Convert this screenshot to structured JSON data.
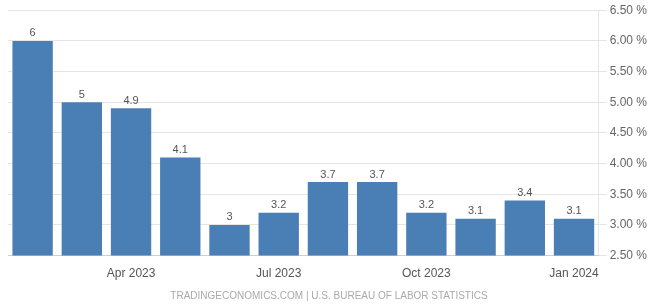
{
  "chart_data": {
    "type": "bar",
    "categories": [
      null,
      null,
      "Apr 2023",
      null,
      null,
      "Jul 2023",
      null,
      null,
      "Oct 2023",
      null,
      null,
      "Jan 2024"
    ],
    "values": [
      6.0,
      5.0,
      4.9,
      4.1,
      3.0,
      3.2,
      3.7,
      3.7,
      3.2,
      3.1,
      3.4,
      3.1
    ],
    "color": "#4a7fb5",
    "ylim": [
      2.5,
      6.5
    ],
    "yticks": [
      {
        "value": 2.5,
        "label": "2.50 %"
      },
      {
        "value": 3.0,
        "label": "3.00 %"
      },
      {
        "value": 3.5,
        "label": "3.50 %"
      },
      {
        "value": 4.0,
        "label": "4.00 %"
      },
      {
        "value": 4.5,
        "label": "4.50 %"
      },
      {
        "value": 5.0,
        "label": "5.00 %"
      },
      {
        "value": 5.5,
        "label": "5.50 %"
      },
      {
        "value": 6.0,
        "label": "6.00 %"
      },
      {
        "value": 6.5,
        "label": "6.50 %"
      }
    ],
    "grid": "y",
    "data_labels": true,
    "footer": "TRADINGECONOMICS.COM | U.S. BUREAU OF LABOR STATISTICS"
  }
}
